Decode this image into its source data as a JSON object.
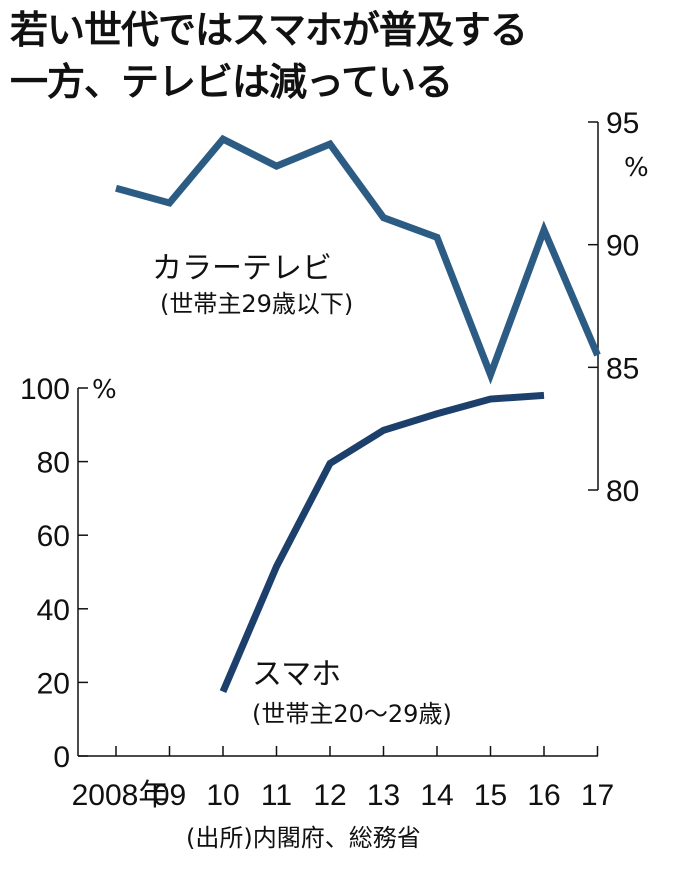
{
  "title": {
    "line1": "若い世代ではスマホが普及する",
    "line2": "一方、テレビは減っている"
  },
  "source": "(出所)内閣府、総務省",
  "chart_data": {
    "type": "line",
    "x": [
      "2008年",
      "09",
      "10",
      "11",
      "12",
      "13",
      "14",
      "15",
      "16",
      "17"
    ],
    "series": [
      {
        "name": "カラーテレビ",
        "subtitle": "(世帯主29歳以下)",
        "axis": "right",
        "color": "#2c5c84",
        "values": [
          92.3,
          91.7,
          94.3,
          93.2,
          94.1,
          91.1,
          90.3,
          84.7,
          90.6,
          85.5
        ]
      },
      {
        "name": "スマホ",
        "subtitle": "(世帯主20〜29歳)",
        "axis": "left",
        "color": "#1d3f6b",
        "values": [
          null,
          null,
          17.5,
          51.5,
          79.5,
          88.5,
          93.0,
          97.0,
          98.0,
          null
        ]
      }
    ],
    "left_axis": {
      "unit": "%",
      "range": [
        0,
        100
      ],
      "ticks": [
        "0",
        "20",
        "40",
        "60",
        "80",
        "100"
      ]
    },
    "right_axis": {
      "unit": "%",
      "range": [
        80,
        95
      ],
      "ticks": [
        "80",
        "85",
        "90",
        "95"
      ]
    }
  }
}
